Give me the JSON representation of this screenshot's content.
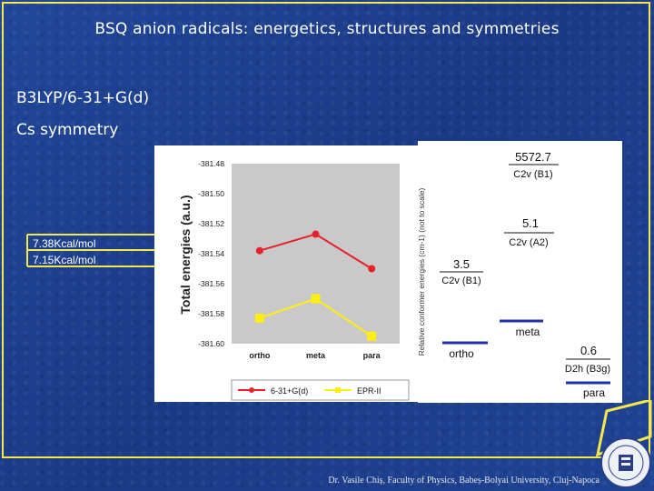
{
  "slide": {
    "title": "BSQ anion radicals: energetics, structures and symmetries",
    "method": "B3LYP/6-31+G(d)",
    "symmetry": "Cs symmetry",
    "annotation_1": "7.38Kcal/mol",
    "annotation_2": "7.15Kcal/mol",
    "footer": "Dr. Vasile Chiș, Faculty of Physics, Babeș-Bolyai University, Cluj-Napoca"
  },
  "colors": {
    "background": "#1d3f8c",
    "frame": "#f7e84a",
    "series_1": "#e8202a",
    "series_2": "#ffee11",
    "energy_bar": "#1f2fa8"
  },
  "chart_data": [
    {
      "type": "line",
      "categories": [
        "ortho",
        "meta",
        "para"
      ],
      "ylabel": "Total energies (a.u.)",
      "ylim": [
        -381.6,
        -381.48
      ],
      "yticks": [
        "-381.48",
        "-381.50",
        "-381.52",
        "-381.54",
        "-381.56",
        "-381.58",
        "-381.60"
      ],
      "legend_position": "bottom",
      "series": [
        {
          "name": "6-31+G(d)",
          "values": [
            -381.538,
            -381.527,
            -381.55
          ]
        },
        {
          "name": "EPR-II",
          "values": [
            -381.583,
            -381.57,
            -381.595
          ]
        }
      ]
    },
    {
      "type": "diagram",
      "ylabel": "Relative conformer energies (cm-1) (not to scale)",
      "levels": [
        {
          "value": "5572.7",
          "label": "C2v (B1)"
        },
        {
          "value": "5.1",
          "label": "C2v (A2)"
        },
        {
          "value": "3.5",
          "label": "C2v (B1)"
        },
        {
          "value": "0.6",
          "label": "D2h (B3g)"
        }
      ],
      "isomers": [
        "ortho",
        "meta",
        "para"
      ]
    }
  ]
}
